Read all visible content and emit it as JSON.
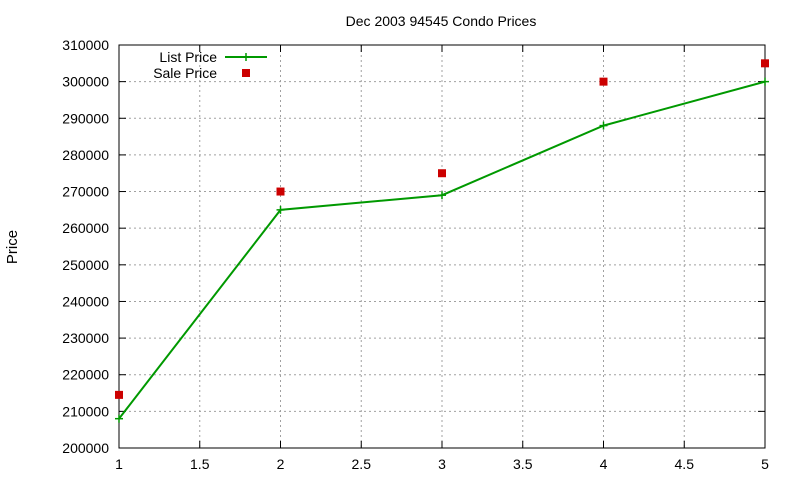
{
  "chart_data": {
    "type": "line",
    "title": "Dec 2003 94545 Condo Prices",
    "xlabel": "",
    "ylabel": "Price",
    "xlim": [
      1,
      5
    ],
    "ylim": [
      200000,
      310000
    ],
    "xticks": [
      "1",
      "1.5",
      "2",
      "2.5",
      "3",
      "3.5",
      "4",
      "4.5",
      "5"
    ],
    "yticks": [
      "200000",
      "210000",
      "220000",
      "230000",
      "240000",
      "250000",
      "260000",
      "270000",
      "280000",
      "290000",
      "300000",
      "310000"
    ],
    "grid": true,
    "legend_position": "top-left",
    "series": [
      {
        "name": "List Price",
        "style": "linespoints",
        "color": "#009900",
        "x": [
          1,
          2,
          3,
          4,
          5
        ],
        "values": [
          208000,
          265000,
          269000,
          288000,
          300000
        ]
      },
      {
        "name": "Sale Price",
        "style": "points",
        "color": "#cc0000",
        "x": [
          1,
          2,
          3,
          4,
          5
        ],
        "values": [
          214500,
          270000,
          275000,
          300000,
          305000
        ]
      }
    ]
  }
}
